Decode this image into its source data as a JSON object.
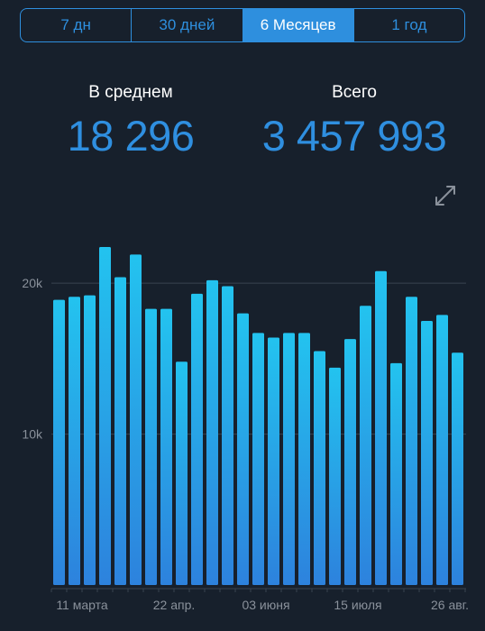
{
  "tabs": [
    {
      "label": "7 дн",
      "active": false
    },
    {
      "label": "30 дней",
      "active": false
    },
    {
      "label": "6 Месяцев",
      "active": true
    },
    {
      "label": "1 год",
      "active": false
    }
  ],
  "stats": {
    "average_label": "В среднем",
    "average_value": "18 296",
    "total_label": "Всего",
    "total_value": "3 457 993"
  },
  "icons": {
    "expand": "expand-arrows-icon"
  },
  "colors": {
    "background": "#17202c",
    "accent": "#2e8fde",
    "bar_top": "#23c3ef",
    "bar_bottom": "#2d82dd"
  },
  "chart_data": {
    "type": "bar",
    "title": "",
    "xlabel": "",
    "ylabel": "",
    "ylim": [
      0,
      22400
    ],
    "grid": true,
    "y_ticks": [
      {
        "value": 10000,
        "label": "10k"
      },
      {
        "value": 20000,
        "label": "20k"
      }
    ],
    "x_labels": [
      {
        "index": 1.5,
        "label": "11 марта"
      },
      {
        "index": 7.5,
        "label": "22 апр."
      },
      {
        "index": 13.5,
        "label": "03 июня"
      },
      {
        "index": 19.5,
        "label": "15 июля"
      },
      {
        "index": 25.5,
        "label": "26 авг."
      }
    ],
    "values": [
      18900,
      19100,
      19200,
      22400,
      20400,
      21900,
      18300,
      18300,
      14800,
      19300,
      20200,
      19800,
      18000,
      16700,
      16400,
      16700,
      16700,
      15500,
      14400,
      16300,
      18500,
      20800,
      14700,
      19100,
      17500,
      17900,
      15400
    ]
  }
}
